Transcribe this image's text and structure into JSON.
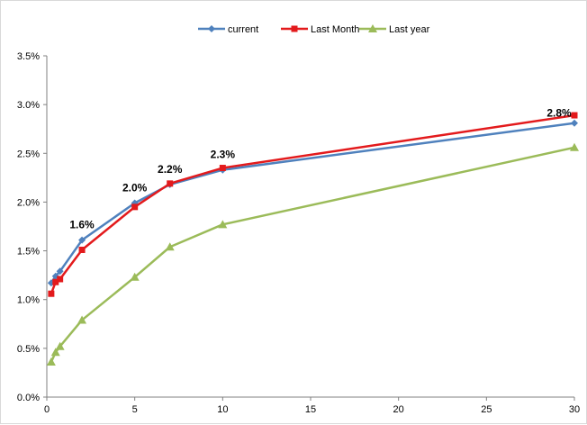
{
  "chart_data": {
    "type": "line",
    "xlim": [
      0,
      30
    ],
    "ylim": [
      0,
      3.5
    ],
    "x_ticks": [
      0,
      5,
      10,
      15,
      20,
      25,
      30
    ],
    "x_tick_labels": [
      "0",
      "5",
      "10",
      "15",
      "20",
      "25",
      "30"
    ],
    "y_ticks": [
      0,
      0.5,
      1.0,
      1.5,
      2.0,
      2.5,
      3.0,
      3.5
    ],
    "y_tick_labels": [
      "0.0%",
      "0.5%",
      "1.0%",
      "1.5%",
      "2.0%",
      "2.5%",
      "3.0%",
      "3.5%"
    ],
    "grid": false,
    "legend_position": "top-center",
    "series": [
      {
        "name": "current",
        "color": "#4f81bd",
        "marker": "diamond",
        "x": [
          0.25,
          0.5,
          0.75,
          2,
          5,
          7,
          10,
          30
        ],
        "y": [
          1.17,
          1.24,
          1.29,
          1.61,
          1.99,
          2.18,
          2.33,
          2.81
        ]
      },
      {
        "name": "Last Month",
        "color": "#e31a1c",
        "marker": "square",
        "x": [
          0.25,
          0.5,
          0.75,
          2,
          5,
          7,
          10,
          30
        ],
        "y": [
          1.06,
          1.18,
          1.21,
          1.51,
          1.95,
          2.19,
          2.35,
          2.89
        ]
      },
      {
        "name": "Last year",
        "color": "#9bbb59",
        "marker": "triangle",
        "x": [
          0.25,
          0.5,
          0.75,
          2,
          5,
          7,
          10,
          30
        ],
        "y": [
          0.36,
          0.46,
          0.52,
          0.79,
          1.23,
          1.54,
          1.77,
          2.56
        ]
      }
    ],
    "data_labels": [
      {
        "text": "1.6%",
        "x": 2,
        "y": 1.61
      },
      {
        "text": "2.0%",
        "x": 5,
        "y": 1.99
      },
      {
        "text": "2.2%",
        "x": 7,
        "y": 2.18
      },
      {
        "text": "2.3%",
        "x": 10,
        "y": 2.33
      },
      {
        "text": "2.8%",
        "x": 30,
        "y": 2.81
      }
    ]
  }
}
